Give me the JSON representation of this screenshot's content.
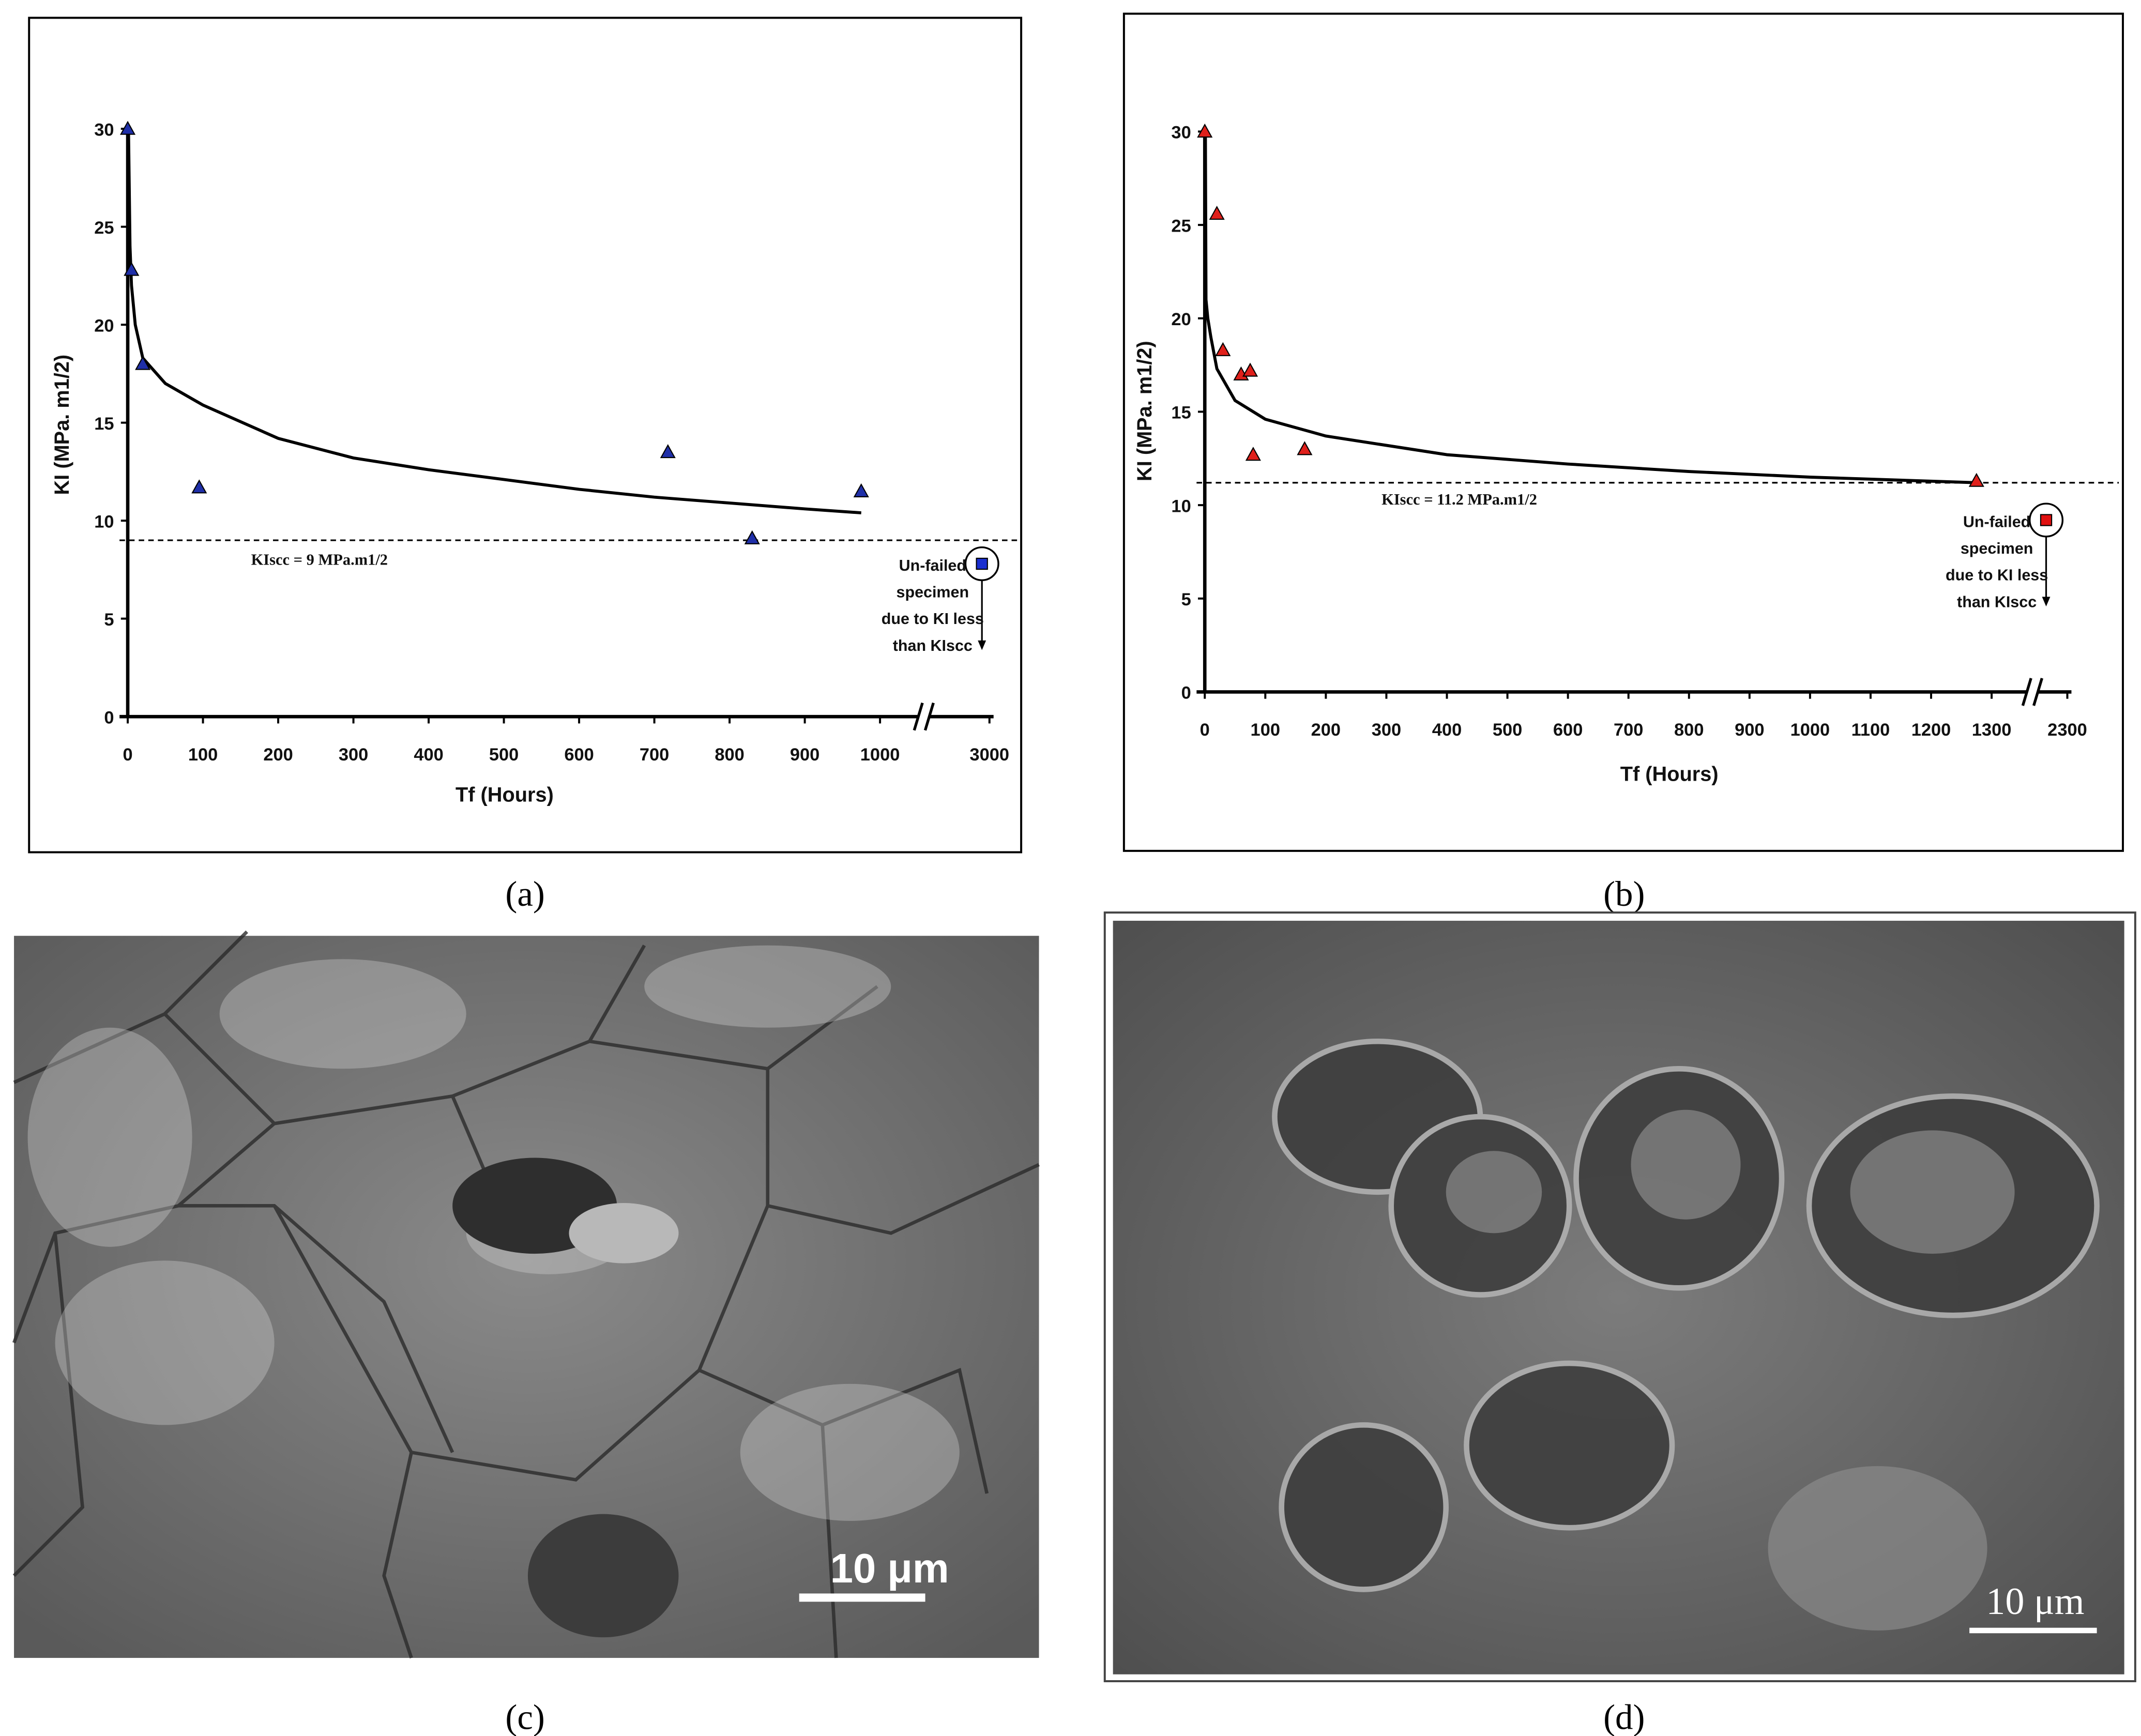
{
  "chart_data": [
    {
      "type": "scatter",
      "panel_label": "(a)",
      "xlabel": "Tf (Hours)",
      "ylabel": "KI (MPa. m1/2)",
      "xlim": [
        0,
        3000
      ],
      "x_break": [
        1050,
        2910
      ],
      "ylim": [
        0,
        30
      ],
      "xticks": [
        0,
        100,
        200,
        300,
        400,
        500,
        600,
        700,
        800,
        900,
        1000,
        3000
      ],
      "yticks": [
        0,
        5,
        10,
        15,
        20,
        25,
        30
      ],
      "series": [
        {
          "kind": "line",
          "color": "#000000",
          "x": [
            1,
            3,
            5,
            10,
            20,
            50,
            100,
            200,
            300,
            400,
            500,
            600,
            700,
            800,
            900,
            975
          ],
          "values": [
            30,
            24,
            22,
            20,
            18.3,
            17,
            15.9,
            14.2,
            13.2,
            12.6,
            12.1,
            11.6,
            11.2,
            10.9,
            10.6,
            10.4
          ]
        },
        {
          "kind": "marker",
          "marker": "triangle",
          "color": "#1f2fa8",
          "x": [
            0,
            5,
            20,
            95,
            718,
            830,
            975
          ],
          "values": [
            30,
            22.8,
            18,
            11.7,
            13.5,
            9.1,
            11.5
          ]
        },
        {
          "kind": "marker",
          "marker": "square",
          "color": "#1a2fd0",
          "x": [
            2990
          ],
          "values": [
            7.8
          ]
        }
      ],
      "threshold": {
        "value": 9,
        "label": "KIscc = 9 MPa.m1/2"
      },
      "note": [
        "Un-failed",
        "specimen",
        "due to KI less",
        "than KIscc"
      ]
    },
    {
      "type": "scatter",
      "panel_label": "(b)",
      "xlabel": "Tf (Hours)",
      "ylabel": "KI (MPa. m1/2)",
      "xlim": [
        0,
        2300
      ],
      "x_break": [
        1356,
        2240
      ],
      "ylim": [
        0,
        30
      ],
      "xticks": [
        0,
        100,
        200,
        300,
        400,
        500,
        600,
        700,
        800,
        900,
        1000,
        1100,
        1200,
        1300,
        2300
      ],
      "yticks": [
        0,
        5,
        10,
        15,
        20,
        25,
        30
      ],
      "series": [
        {
          "kind": "line",
          "color": "#000000",
          "x": [
            1,
            2,
            5,
            10,
            20,
            50,
            100,
            200,
            400,
            600,
            800,
            1000,
            1275
          ],
          "values": [
            30,
            21,
            20,
            19,
            17.3,
            15.6,
            14.6,
            13.7,
            12.7,
            12.2,
            11.8,
            11.5,
            11.2
          ]
        },
        {
          "kind": "marker",
          "marker": "triangle",
          "color": "#e0201b",
          "x": [
            0,
            20,
            30,
            60,
            75,
            80,
            165,
            1275
          ],
          "values": [
            30,
            25.6,
            18.3,
            17,
            17.2,
            12.7,
            13,
            11.3
          ]
        },
        {
          "kind": "marker",
          "marker": "square",
          "color": "#e01010",
          "x": [
            2265
          ],
          "values": [
            9.2
          ]
        }
      ],
      "threshold": {
        "value": 11.2,
        "label": "KIscc = 11.2 MPa.m1/2"
      },
      "note": [
        "Un-failed",
        "specimen",
        "due to KI less",
        "than KIscc"
      ]
    }
  ],
  "images": [
    {
      "panel_label": "(c)",
      "scale_bar": "10 μm"
    },
    {
      "panel_label": "(d)",
      "scale_bar": "10 μm"
    }
  ]
}
